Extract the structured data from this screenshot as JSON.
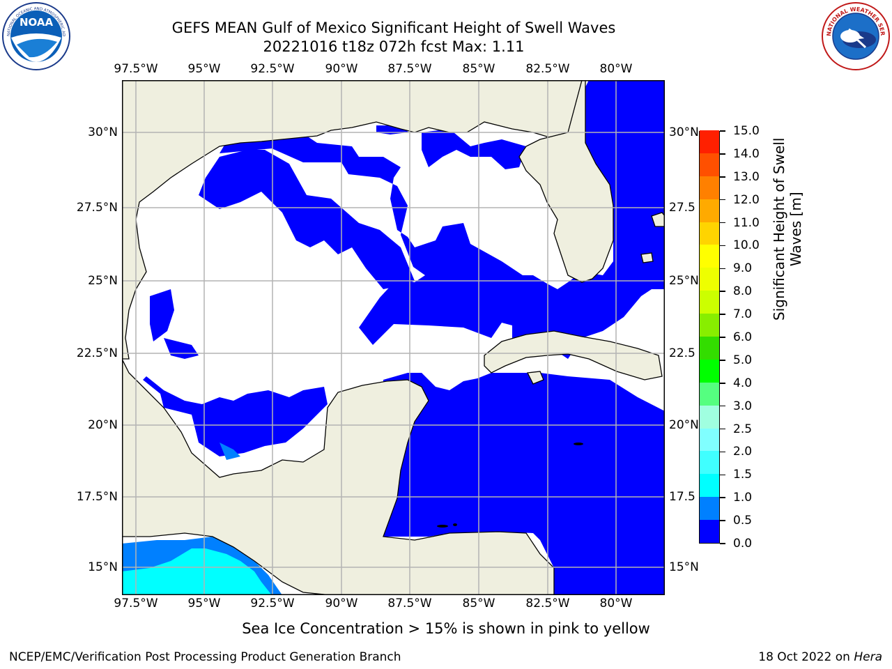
{
  "header": {
    "title_line1": "GEFS MEAN Gulf of Mexico Significant Height of Swell Waves",
    "title_line2": "20221016 t18z 072h fcst   Max: 1.11"
  },
  "logos": {
    "left": {
      "name": "NOAA",
      "ring_text": "NATIONAL OCEANIC AND ATMOSPHERIC ADMINISTRATION · U.S. DEPARTMENT OF COMMERCE"
    },
    "right": {
      "name": "NATIONAL WEATHER SERVICE"
    }
  },
  "map": {
    "lon_labels": [
      "97.5°W",
      "95°W",
      "92.5°W",
      "90°W",
      "87.5°W",
      "85°W",
      "82.5°W",
      "80°W"
    ],
    "lat_labels_left": [
      "30°N",
      "27.5°N",
      "25°N",
      "22.5°N",
      "20°N",
      "17.5°N",
      "15°N"
    ],
    "lat_labels_right": [
      "30°N",
      "27.5",
      "25°N",
      "22.5",
      "20°N",
      "17.5",
      "15°N"
    ],
    "lon_range": [
      -98,
      -78
    ],
    "lat_range": [
      14,
      31.6
    ],
    "land_color": "#efefdf",
    "missing_color": "#ffffff",
    "grid": true
  },
  "colorbar": {
    "label": "Significant Height of Swell Waves [m]",
    "label_line1": "Significant Height of Swell",
    "label_line2": "Waves [m]",
    "ticks": [
      "0.0",
      "0.5",
      "1.0",
      "1.5",
      "2.0",
      "2.5",
      "3.0",
      "4.0",
      "5.0",
      "6.0",
      "7.0",
      "8.0",
      "9.0",
      "10.0",
      "11.0",
      "12.0",
      "13.0",
      "14.0",
      "15.0"
    ],
    "colors": [
      "#0000ff",
      "#0080ff",
      "#00ffff",
      "#40ffff",
      "#80ffff",
      "#a0ffe0",
      "#55ff80",
      "#00ff00",
      "#33dd00",
      "#88ee00",
      "#ccff00",
      "#eeff00",
      "#ffff00",
      "#ffd400",
      "#ffaa00",
      "#ff8000",
      "#ff5000",
      "#ff2000",
      "#ff0000"
    ]
  },
  "footnote": "Sea Ice Concentration > 15% is shown in pink to yellow",
  "footer": {
    "left": "NCEP/EMC/Verification Post Processing Product Generation Branch",
    "right_date": "18 Oct 2022 on ",
    "right_host": "Hera"
  }
}
